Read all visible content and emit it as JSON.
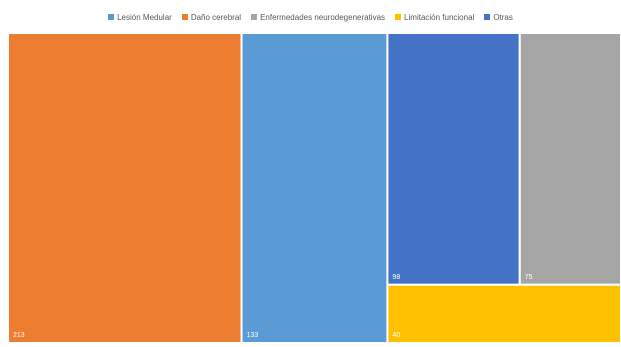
{
  "chart_data": {
    "type": "treemap",
    "title": "",
    "legend_position": "top",
    "series": [
      {
        "name": "Lesión Medular",
        "color": "#5B9BD5",
        "value": 133,
        "label": "133"
      },
      {
        "name": "Daño cerebral",
        "color": "#ED7D31",
        "value": 213,
        "label": "213"
      },
      {
        "name": "Enfermedades neurodegenerativas",
        "color": "#A5A5A5",
        "value": 75,
        "label": "75"
      },
      {
        "name": "Limitación funcional",
        "color": "#FFC000",
        "value": 40,
        "label": "40"
      },
      {
        "name": "Otras",
        "color": "#4472C4",
        "value": 98,
        "label": "98"
      }
    ],
    "legend_order": [
      "Lesión Medular",
      "Daño cerebral",
      "Enfermedades neurodegenerativas",
      "Limitación funcional",
      "Otras"
    ]
  }
}
